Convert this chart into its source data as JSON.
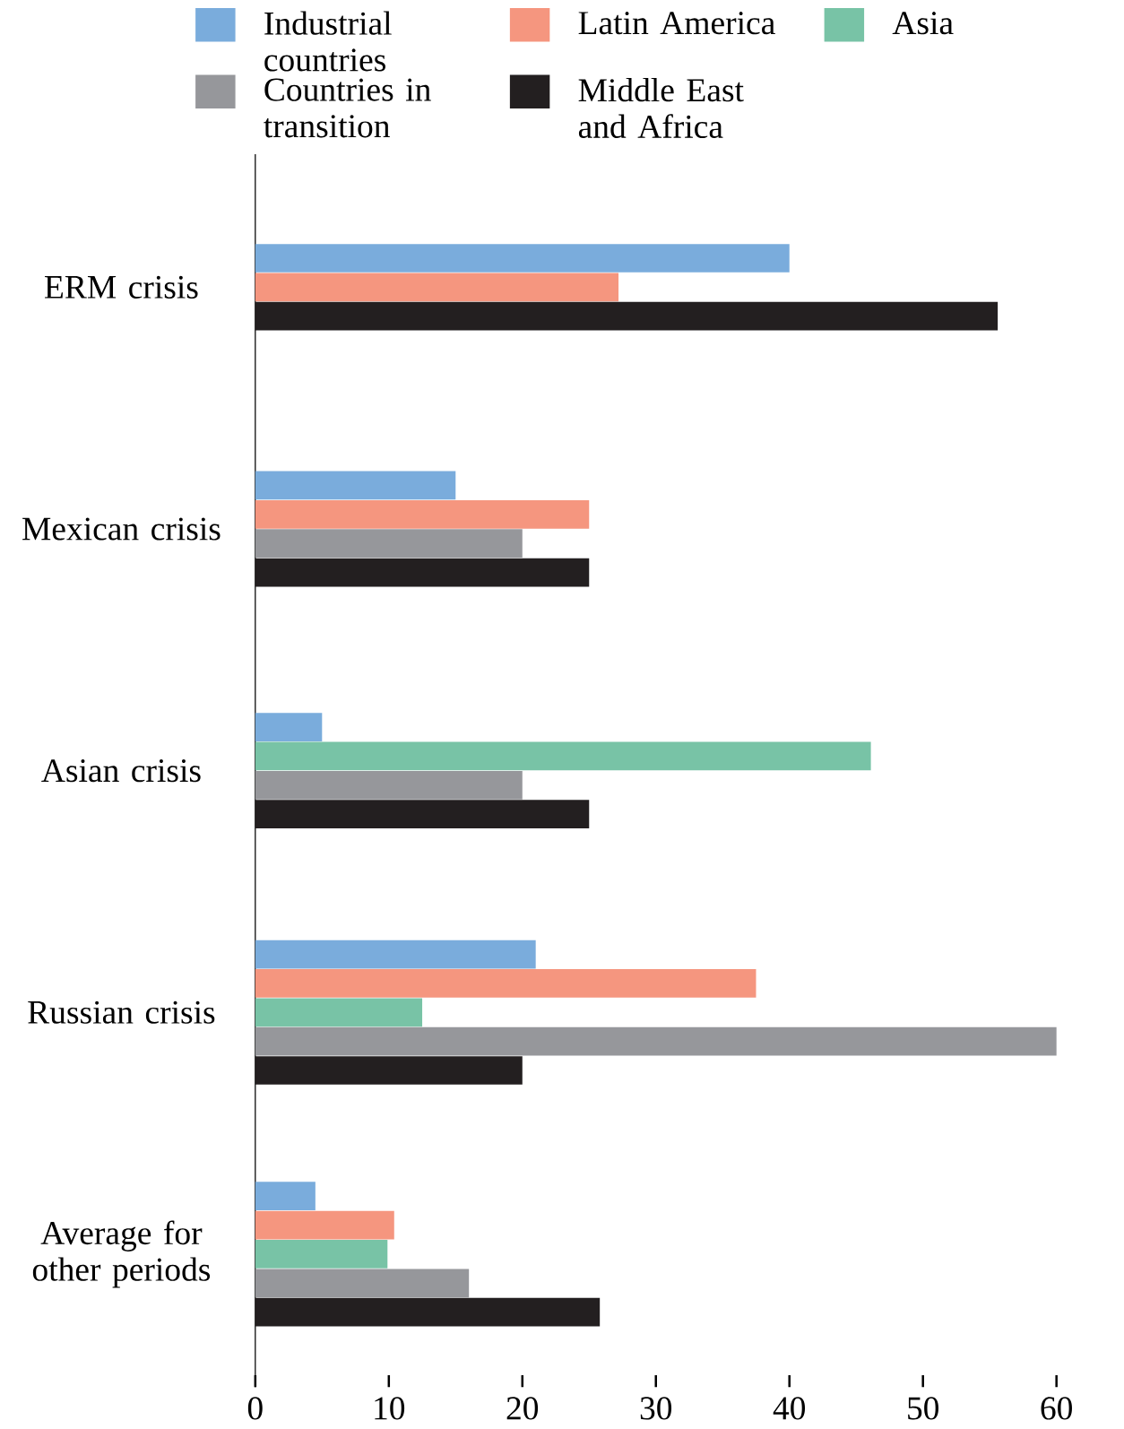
{
  "chart_data": {
    "type": "bar",
    "orientation": "horizontal",
    "legend": "top",
    "categories": [
      "ERM crisis",
      "Mexican crisis",
      "Asian crisis",
      "Russian crisis",
      "Average for other periods"
    ],
    "series": [
      {
        "name": "Industrial countries",
        "color": "#7aacdc",
        "values": [
          40,
          15,
          5,
          21,
          4.5
        ]
      },
      {
        "name": "Latin America",
        "color": "#f5967f",
        "values": [
          27.2,
          25,
          null,
          37.5,
          10.4
        ]
      },
      {
        "name": "Asia",
        "color": "#78c3a6",
        "values": [
          null,
          null,
          46.1,
          12.5,
          9.9
        ]
      },
      {
        "name": "Countries in transition",
        "color": "#96979b",
        "values": [
          null,
          20,
          20,
          60,
          16
        ]
      },
      {
        "name": "Middle East and Africa",
        "color": "#231f20",
        "values": [
          55.6,
          25,
          25,
          20,
          25.8
        ]
      }
    ],
    "xlim": [
      0,
      60
    ],
    "xticks": [
      0,
      10,
      20,
      30,
      40,
      50,
      60
    ]
  }
}
